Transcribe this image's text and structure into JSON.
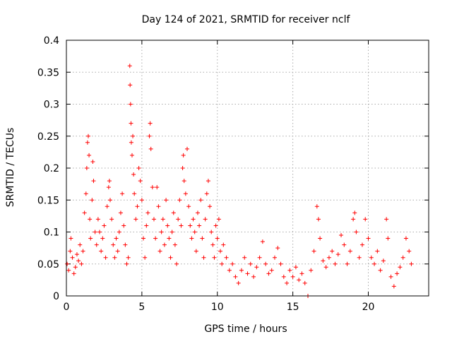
{
  "chart_data": {
    "type": "scatter",
    "title": "Day 124 of 2021, SRMTID for receiver nclf",
    "xlabel": "GPS time / hours",
    "ylabel": "SRMTID / TECUs",
    "xlim": [
      0,
      24
    ],
    "ylim": [
      0,
      0.4
    ],
    "x_ticks": [
      0,
      5,
      10,
      15,
      20
    ],
    "x_tick_labels": [
      "0",
      "5",
      "10",
      "15",
      "20"
    ],
    "y_ticks": [
      0,
      0.05,
      0.1,
      0.15,
      0.2,
      0.25,
      0.3,
      0.35,
      0.4
    ],
    "y_tick_labels": [
      "0",
      "0.05",
      "0.1",
      "0.15",
      "0.2",
      "0.25",
      "0.3",
      "0.35",
      "0.4"
    ],
    "grid": true,
    "marker": "plus",
    "marker_color": "#ff0000",
    "series": [
      {
        "name": "SRMTID",
        "points": [
          [
            0.05,
            0.05
          ],
          [
            0.15,
            0.04
          ],
          [
            0.25,
            0.07
          ],
          [
            0.3,
            0.09
          ],
          [
            0.4,
            0.06
          ],
          [
            0.5,
            0.035
          ],
          [
            0.6,
            0.045
          ],
          [
            0.7,
            0.065
          ],
          [
            0.8,
            0.055
          ],
          [
            0.9,
            0.08
          ],
          [
            1.0,
            0.05
          ],
          [
            1.1,
            0.07
          ],
          [
            1.2,
            0.13
          ],
          [
            1.3,
            0.16
          ],
          [
            1.35,
            0.2
          ],
          [
            1.4,
            0.24
          ],
          [
            1.45,
            0.25
          ],
          [
            1.5,
            0.22
          ],
          [
            1.55,
            0.12
          ],
          [
            1.6,
            0.09
          ],
          [
            1.7,
            0.15
          ],
          [
            1.75,
            0.21
          ],
          [
            1.8,
            0.18
          ],
          [
            1.9,
            0.1
          ],
          [
            2.0,
            0.08
          ],
          [
            2.1,
            0.12
          ],
          [
            2.2,
            0.1
          ],
          [
            2.3,
            0.07
          ],
          [
            2.4,
            0.09
          ],
          [
            2.5,
            0.11
          ],
          [
            2.6,
            0.06
          ],
          [
            2.7,
            0.14
          ],
          [
            2.8,
            0.17
          ],
          [
            2.85,
            0.18
          ],
          [
            2.9,
            0.15
          ],
          [
            3.0,
            0.12
          ],
          [
            3.1,
            0.08
          ],
          [
            3.2,
            0.06
          ],
          [
            3.3,
            0.09
          ],
          [
            3.4,
            0.07
          ],
          [
            3.5,
            0.1
          ],
          [
            3.6,
            0.13
          ],
          [
            3.7,
            0.16
          ],
          [
            3.8,
            0.11
          ],
          [
            3.9,
            0.08
          ],
          [
            4.0,
            0.05
          ],
          [
            4.1,
            0.06
          ],
          [
            4.2,
            0.36
          ],
          [
            4.22,
            0.33
          ],
          [
            4.25,
            0.3
          ],
          [
            4.28,
            0.27
          ],
          [
            4.3,
            0.24
          ],
          [
            4.35,
            0.22
          ],
          [
            4.4,
            0.25
          ],
          [
            4.45,
            0.19
          ],
          [
            4.5,
            0.16
          ],
          [
            4.6,
            0.12
          ],
          [
            4.7,
            0.14
          ],
          [
            4.8,
            0.2
          ],
          [
            4.9,
            0.18
          ],
          [
            5.0,
            0.15
          ],
          [
            5.1,
            0.09
          ],
          [
            5.2,
            0.06
          ],
          [
            5.3,
            0.11
          ],
          [
            5.4,
            0.13
          ],
          [
            5.5,
            0.25
          ],
          [
            5.55,
            0.27
          ],
          [
            5.6,
            0.23
          ],
          [
            5.7,
            0.17
          ],
          [
            5.8,
            0.12
          ],
          [
            5.9,
            0.09
          ],
          [
            6.0,
            0.17
          ],
          [
            6.1,
            0.14
          ],
          [
            6.2,
            0.07
          ],
          [
            6.3,
            0.1
          ],
          [
            6.4,
            0.12
          ],
          [
            6.5,
            0.08
          ],
          [
            6.6,
            0.15
          ],
          [
            6.7,
            0.11
          ],
          [
            6.8,
            0.09
          ],
          [
            6.9,
            0.06
          ],
          [
            7.0,
            0.1
          ],
          [
            7.1,
            0.13
          ],
          [
            7.2,
            0.08
          ],
          [
            7.3,
            0.05
          ],
          [
            7.4,
            0.12
          ],
          [
            7.5,
            0.15
          ],
          [
            7.6,
            0.11
          ],
          [
            7.7,
            0.2
          ],
          [
            7.75,
            0.22
          ],
          [
            7.8,
            0.18
          ],
          [
            7.9,
            0.16
          ],
          [
            8.0,
            0.23
          ],
          [
            8.1,
            0.14
          ],
          [
            8.2,
            0.11
          ],
          [
            8.3,
            0.09
          ],
          [
            8.4,
            0.12
          ],
          [
            8.5,
            0.1
          ],
          [
            8.6,
            0.07
          ],
          [
            8.7,
            0.13
          ],
          [
            8.8,
            0.11
          ],
          [
            8.9,
            0.15
          ],
          [
            9.0,
            0.09
          ],
          [
            9.1,
            0.06
          ],
          [
            9.2,
            0.12
          ],
          [
            9.3,
            0.16
          ],
          [
            9.4,
            0.18
          ],
          [
            9.5,
            0.14
          ],
          [
            9.6,
            0.1
          ],
          [
            9.7,
            0.08
          ],
          [
            9.8,
            0.06
          ],
          [
            9.9,
            0.11
          ],
          [
            10.0,
            0.09
          ],
          [
            10.1,
            0.12
          ],
          [
            10.2,
            0.07
          ],
          [
            10.3,
            0.05
          ],
          [
            10.4,
            0.08
          ],
          [
            10.6,
            0.06
          ],
          [
            10.8,
            0.04
          ],
          [
            11.0,
            0.05
          ],
          [
            11.2,
            0.03
          ],
          [
            11.4,
            0.02
          ],
          [
            11.6,
            0.04
          ],
          [
            11.8,
            0.06
          ],
          [
            12.0,
            0.035
          ],
          [
            12.2,
            0.05
          ],
          [
            12.4,
            0.03
          ],
          [
            12.6,
            0.045
          ],
          [
            12.8,
            0.06
          ],
          [
            13.0,
            0.085
          ],
          [
            13.2,
            0.05
          ],
          [
            13.4,
            0.035
          ],
          [
            13.6,
            0.04
          ],
          [
            13.8,
            0.06
          ],
          [
            14.0,
            0.075
          ],
          [
            14.2,
            0.05
          ],
          [
            14.4,
            0.03
          ],
          [
            14.6,
            0.02
          ],
          [
            14.8,
            0.04
          ],
          [
            15.0,
            0.03
          ],
          [
            15.2,
            0.045
          ],
          [
            15.4,
            0.025
          ],
          [
            15.6,
            0.035
          ],
          [
            15.8,
            0.02
          ],
          [
            16.0,
            0.0
          ],
          [
            16.2,
            0.04
          ],
          [
            16.4,
            0.07
          ],
          [
            16.6,
            0.14
          ],
          [
            16.7,
            0.12
          ],
          [
            16.8,
            0.09
          ],
          [
            17.0,
            0.055
          ],
          [
            17.2,
            0.045
          ],
          [
            17.4,
            0.06
          ],
          [
            17.6,
            0.07
          ],
          [
            17.8,
            0.05
          ],
          [
            18.0,
            0.065
          ],
          [
            18.2,
            0.095
          ],
          [
            18.4,
            0.08
          ],
          [
            18.6,
            0.05
          ],
          [
            18.8,
            0.07
          ],
          [
            19.0,
            0.12
          ],
          [
            19.1,
            0.13
          ],
          [
            19.2,
            0.1
          ],
          [
            19.4,
            0.06
          ],
          [
            19.6,
            0.08
          ],
          [
            19.8,
            0.12
          ],
          [
            20.0,
            0.09
          ],
          [
            20.2,
            0.06
          ],
          [
            20.4,
            0.05
          ],
          [
            20.6,
            0.07
          ],
          [
            20.8,
            0.04
          ],
          [
            21.0,
            0.055
          ],
          [
            21.2,
            0.12
          ],
          [
            21.3,
            0.09
          ],
          [
            21.5,
            0.03
          ],
          [
            21.7,
            0.015
          ],
          [
            21.9,
            0.035
          ],
          [
            22.1,
            0.045
          ],
          [
            22.3,
            0.06
          ],
          [
            22.5,
            0.09
          ],
          [
            22.7,
            0.07
          ],
          [
            22.85,
            0.05
          ]
        ]
      }
    ]
  }
}
